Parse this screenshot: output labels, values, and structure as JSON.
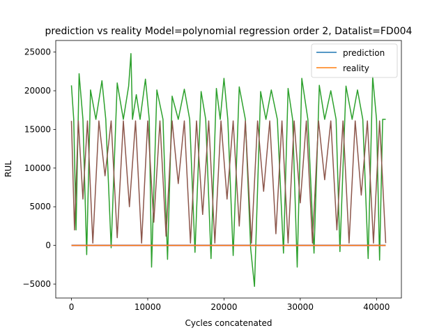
{
  "chart_data": {
    "type": "line",
    "title": "prediction vs reality Model=polynomial regression order 2, Datalist=FD004",
    "xlabel": "Cycles concatenated",
    "ylabel": "RUL",
    "xlim": [
      -2060,
      43260
    ],
    "ylim": [
      -6800,
      26500
    ],
    "xticks": [
      0,
      10000,
      20000,
      30000,
      40000
    ],
    "yticks": [
      -5000,
      0,
      5000,
      10000,
      15000,
      20000,
      25000
    ],
    "legend_position": "top-right",
    "legend": [
      {
        "label": "prediction",
        "color": "#1f77b4"
      },
      {
        "label": "reality",
        "color": "#ff7f0e"
      }
    ],
    "series": [
      {
        "name": "prediction",
        "color": "#1f77b4",
        "x": [
          0,
          41200
        ],
        "y": [
          0,
          0
        ]
      },
      {
        "name": "reality",
        "color": "#ff7f0e",
        "x": [
          0,
          41200
        ],
        "y": [
          0,
          0
        ]
      },
      {
        "color": "#2ca02c",
        "x": [
          0,
          300,
          600,
          1000,
          1500,
          2000,
          2500,
          3200,
          4000,
          4500,
          5200,
          6000,
          6800,
          7500,
          7800,
          8000,
          8500,
          9000,
          9700,
          10200,
          10500,
          11200,
          12000,
          12600,
          13200,
          14000,
          14800,
          15500,
          16200,
          17000,
          17600,
          18300,
          19000,
          19500,
          20000,
          20500,
          21200,
          22000,
          22800,
          23500,
          24000,
          24800,
          25500,
          26200,
          27000,
          27800,
          28400,
          29000,
          29600,
          30200,
          31000,
          31800,
          32500,
          33200,
          34000,
          34700,
          35200,
          36000,
          36800,
          37500,
          38200,
          38900,
          39500,
          40000,
          40400,
          40800,
          41200
        ],
        "y": [
          20700,
          16300,
          2000,
          22200,
          16300,
          -1200,
          20100,
          16300,
          21300,
          16300,
          -300,
          21000,
          16300,
          20600,
          24800,
          16300,
          19500,
          16300,
          21500,
          16300,
          -2800,
          20100,
          16300,
          -1800,
          19300,
          16300,
          20200,
          16300,
          -900,
          19900,
          16300,
          -1700,
          20300,
          16300,
          21600,
          16300,
          -1300,
          20500,
          16300,
          -400,
          -5300,
          19900,
          16300,
          20100,
          16300,
          -1000,
          20300,
          16300,
          -2800,
          21600,
          16300,
          -1000,
          20700,
          16300,
          20000,
          16300,
          -800,
          20600,
          16300,
          20100,
          16300,
          -1700,
          21800,
          16300,
          -1900,
          16300,
          16300
        ]
      },
      {
        "color": "#8c564b",
        "x": [
          0,
          400,
          900,
          1500,
          2100,
          2800,
          3600,
          4400,
          5200,
          6000,
          6800,
          7600,
          8400,
          9200,
          10000,
          10800,
          11600,
          12400,
          13200,
          14000,
          14800,
          15600,
          16400,
          17200,
          18000,
          18800,
          19600,
          20400,
          21200,
          22000,
          22800,
          23600,
          24400,
          25200,
          26000,
          26800,
          27600,
          28400,
          29200,
          30000,
          30800,
          31600,
          32400,
          33200,
          34000,
          34800,
          35600,
          36400,
          37200,
          38000,
          38800,
          39600,
          40400,
          41200
        ],
        "y": [
          16100,
          2000,
          16100,
          6000,
          16100,
          300,
          16100,
          9000,
          16100,
          1000,
          16100,
          5000,
          16100,
          300,
          16100,
          3000,
          16100,
          1200,
          16100,
          8000,
          16100,
          300,
          16100,
          4000,
          16100,
          300,
          16100,
          6000,
          16100,
          2500,
          16100,
          300,
          16100,
          7000,
          16100,
          1500,
          16100,
          300,
          16100,
          5500,
          16100,
          300,
          16100,
          8500,
          16100,
          2000,
          16100,
          300,
          16100,
          6500,
          16100,
          300,
          16100,
          300
        ]
      },
      {
        "color": "#e377c2",
        "x": [
          0,
          41200
        ],
        "y": [
          -30,
          -30
        ]
      },
      {
        "color": "#9467bd",
        "x": [
          0,
          41200
        ],
        "y": [
          40,
          40
        ]
      }
    ]
  }
}
